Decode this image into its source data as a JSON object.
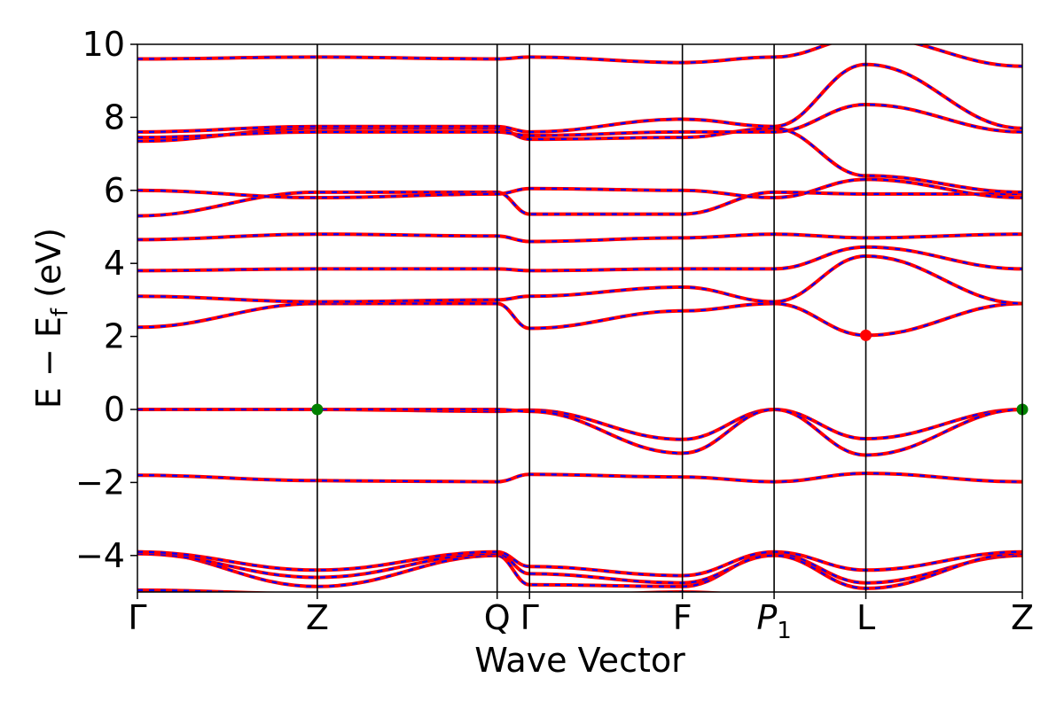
{
  "chart_data": {
    "type": "line",
    "xlabel": "Wave Vector",
    "ylabel": "E − E",
    "ylabel_sub": "f",
    "ylabel_unit": " (eV)",
    "xlim": [
      0,
      4.92
    ],
    "ylim": [
      -5,
      10
    ],
    "yticks": [
      {
        "value": -4,
        "label": "−4"
      },
      {
        "value": -2,
        "label": "−2"
      },
      {
        "value": 0,
        "label": "0"
      },
      {
        "value": 2,
        "label": "2"
      },
      {
        "value": 4,
        "label": "4"
      },
      {
        "value": 6,
        "label": "6"
      },
      {
        "value": 8,
        "label": "8"
      },
      {
        "value": 10,
        "label": "10"
      }
    ],
    "kpoints": [
      {
        "label": "Γ",
        "italic": false,
        "sub": "",
        "x": 0.0
      },
      {
        "label": "Z",
        "italic": false,
        "sub": "",
        "x": 1.0
      },
      {
        "label": "Q",
        "italic": false,
        "sub": "",
        "x": 2.0
      },
      {
        "label": "Γ",
        "italic": false,
        "sub": "",
        "x": 2.18
      },
      {
        "label": "F",
        "italic": false,
        "sub": "",
        "x": 3.03
      },
      {
        "label": "P",
        "italic": true,
        "sub": "1",
        "x": 3.54
      },
      {
        "label": "L",
        "italic": false,
        "sub": "",
        "x": 4.05
      },
      {
        "label": "Z",
        "italic": false,
        "sub": "",
        "x": 4.92
      }
    ],
    "series_colors": {
      "dft": "#ff0000",
      "interp": "#0000ff"
    },
    "markers": [
      {
        "name": "VBM",
        "x": 1.0,
        "y": 0.0,
        "color": "#008000"
      },
      {
        "name": "VBM",
        "x": 4.92,
        "y": 0.0,
        "color": "#008000"
      },
      {
        "name": "CBM",
        "x": 4.05,
        "y": 2.03,
        "color": "#ff0000"
      }
    ],
    "bands": [
      [
        -4.95,
        -5.05,
        -5.1,
        -5.15,
        -5.0,
        -5.1,
        -5.05,
        -5.1
      ],
      [
        -3.9,
        -4.85,
        -4.0,
        -4.8,
        -4.85,
        -3.95,
        -4.75,
        -4.0
      ],
      [
        -3.95,
        -4.6,
        -3.95,
        -4.5,
        -4.75,
        -4.0,
        -4.9,
        -3.95
      ],
      [
        -3.9,
        -4.4,
        -3.9,
        -4.3,
        -4.55,
        -3.9,
        -4.4,
        -3.9
      ],
      [
        -1.8,
        -1.95,
        -1.98,
        -1.78,
        -1.85,
        -1.98,
        -1.75,
        -1.98
      ],
      [
        0.0,
        0.0,
        -0.05,
        -0.02,
        -0.82,
        0.0,
        -0.8,
        0.0
      ],
      [
        0.0,
        0.0,
        0.0,
        -0.05,
        -1.2,
        0.0,
        -1.25,
        0.0
      ],
      [
        2.25,
        2.9,
        2.9,
        2.22,
        2.7,
        2.9,
        2.03,
        2.9
      ],
      [
        3.1,
        2.95,
        3.0,
        3.1,
        3.35,
        2.95,
        4.2,
        2.9
      ],
      [
        3.8,
        3.85,
        3.85,
        3.8,
        3.85,
        3.85,
        4.45,
        3.85
      ],
      [
        4.65,
        4.8,
        4.75,
        4.6,
        4.7,
        4.8,
        4.7,
        4.8
      ],
      [
        5.3,
        5.95,
        5.95,
        5.35,
        5.35,
        5.95,
        5.9,
        5.9
      ],
      [
        6.0,
        5.8,
        5.9,
        6.05,
        6.0,
        5.8,
        6.3,
        5.8
      ],
      [
        7.35,
        7.7,
        7.7,
        7.4,
        7.45,
        7.7,
        6.4,
        5.95
      ],
      [
        7.45,
        7.6,
        7.6,
        7.5,
        7.6,
        7.6,
        8.35,
        7.6
      ],
      [
        7.6,
        7.75,
        7.75,
        7.6,
        7.95,
        7.75,
        9.45,
        7.7
      ],
      [
        9.6,
        9.65,
        9.6,
        9.65,
        9.5,
        9.65,
        10.2,
        9.4
      ]
    ]
  }
}
